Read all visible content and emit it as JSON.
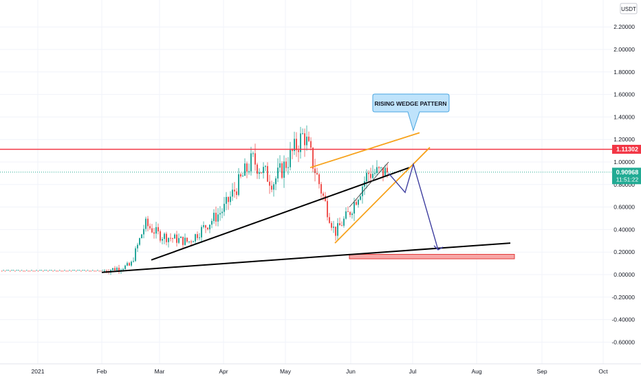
{
  "currency": "USDT",
  "price_badges": {
    "resistance": "1.11302",
    "last_price": "0.90968",
    "countdown": "11:51:22"
  },
  "annotation": "RISING WEDGE PATTERN",
  "colors": {
    "up": "#26a69a",
    "down": "#ef5350",
    "resistance": "#f23645",
    "last_price": "#22ab94",
    "trendline": "#000000",
    "wedge": "#f7a21b",
    "projection": "#3f3fa0",
    "target_zone": "#f7a7a7",
    "callout": "#bfe3fb"
  },
  "chart_data": {
    "type": "candlestick",
    "y_range": [
      -0.7,
      2.3
    ],
    "y_ticks": [
      "2.20000",
      "2.00000",
      "1.80000",
      "1.60000",
      "1.40000",
      "1.20000",
      "1.00000",
      "0.80000",
      "0.60000",
      "0.40000",
      "0.20000",
      "0.00000",
      "-0.20000",
      "-0.40000",
      "-0.60000"
    ],
    "x_ticks": [
      "2021",
      "Feb",
      "Mar",
      "Apr",
      "May",
      "Jun",
      "Jul",
      "Aug",
      "Sep",
      "Oct"
    ],
    "resistance_level": 1.11302,
    "last_price": 0.90968,
    "ohlc": [
      {
        "date": "Jan 10",
        "close": 0.03
      },
      {
        "date": "Feb 01",
        "close": 0.03
      },
      {
        "date": "Feb 15",
        "close": 0.08
      },
      {
        "date": "Feb 22",
        "close": 0.45
      },
      {
        "date": "Mar 01",
        "close": 0.35
      },
      {
        "date": "Mar 15",
        "close": 0.29
      },
      {
        "date": "Apr 01",
        "close": 0.58
      },
      {
        "date": "Apr 15",
        "close": 1.02
      },
      {
        "date": "Apr 25",
        "close": 0.82
      },
      {
        "date": "May 01",
        "close": 0.98
      },
      {
        "date": "May 10",
        "close": 1.25
      },
      {
        "date": "May 20",
        "close": 0.65
      },
      {
        "date": "May 25",
        "close": 0.37
      },
      {
        "date": "Jun 01",
        "close": 0.55
      },
      {
        "date": "Jun 10",
        "close": 0.9
      },
      {
        "date": "Jun 20",
        "close": 0.91
      }
    ],
    "overlays": {
      "rising_support": [
        [
          "Feb 25",
          0.13
        ],
        [
          "Jun 30",
          0.95
        ]
      ],
      "long_support": [
        [
          "Feb 01",
          0.02
        ],
        [
          "Aug 18",
          0.28
        ]
      ],
      "wedge_upper": [
        [
          "May 13",
          0.95
        ],
        [
          "Jul 05",
          1.26
        ]
      ],
      "wedge_lower": [
        [
          "May 25",
          0.28
        ],
        [
          "Jul 10",
          1.13
        ]
      ],
      "projection": [
        [
          "Jun 20",
          0.9
        ],
        [
          "Jun 28",
          0.73
        ],
        [
          "Jul 02",
          0.98
        ],
        [
          "Jul 14",
          0.22
        ]
      ],
      "target_zone": [
        [
          "Jun 01",
          0.14
        ],
        [
          "Aug 20",
          0.18
        ]
      ]
    }
  }
}
